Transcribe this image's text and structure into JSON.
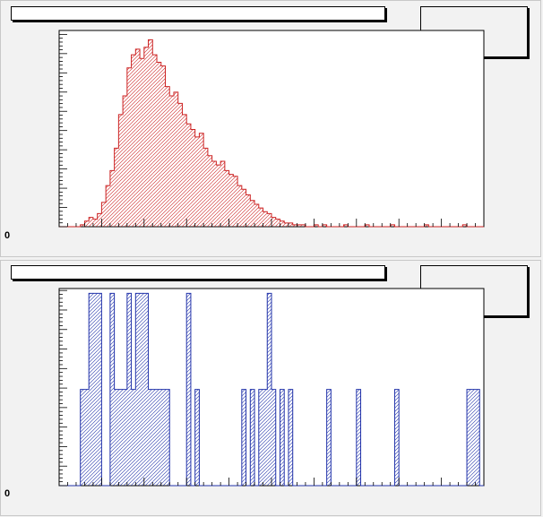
{
  "pads": [
    {
      "id": "top",
      "title": "",
      "stats": "",
      "axis_corner_label": "0"
    },
    {
      "id": "bottom",
      "title": "",
      "stats": "",
      "axis_corner_label": "0"
    }
  ],
  "chart_data": [
    {
      "type": "histogram",
      "title": "",
      "xlabel": "",
      "ylabel": "",
      "line_color": "#cc2222",
      "fill": "hatched",
      "bin_count": 100,
      "values": [
        0,
        0,
        0,
        0,
        0,
        1,
        3,
        5,
        4,
        7,
        13,
        22,
        30,
        42,
        60,
        70,
        85,
        92,
        95,
        90,
        96,
        100,
        92,
        88,
        86,
        75,
        70,
        72,
        66,
        60,
        55,
        52,
        48,
        50,
        42,
        38,
        35,
        33,
        35,
        30,
        28,
        27,
        22,
        20,
        17,
        14,
        12,
        10,
        8,
        7,
        5,
        4,
        3,
        2,
        2,
        1,
        1,
        1,
        0,
        0,
        1,
        0,
        1,
        0,
        0,
        0,
        0,
        1,
        0,
        0,
        0,
        0,
        1,
        0,
        0,
        0,
        0,
        0,
        1,
        0,
        0,
        0,
        0,
        0,
        0,
        0,
        1,
        0,
        0,
        0,
        0,
        0,
        0,
        0,
        0,
        1,
        0,
        0,
        0,
        0
      ],
      "ylim": [
        0,
        105
      ],
      "grid": false
    },
    {
      "type": "histogram",
      "title": "",
      "xlabel": "",
      "ylabel": "",
      "line_color": "#2233aa",
      "fill": "hatched",
      "bin_count": 100,
      "values": [
        0,
        0,
        0,
        0,
        0,
        1,
        1,
        2,
        2,
        2,
        0,
        0,
        2,
        1,
        1,
        1,
        2,
        1,
        2,
        2,
        2,
        1,
        1,
        1,
        1,
        1,
        0,
        0,
        0,
        0,
        2,
        0,
        1,
        0,
        0,
        0,
        0,
        0,
        0,
        0,
        0,
        0,
        0,
        1,
        0,
        1,
        0,
        1,
        1,
        2,
        1,
        0,
        1,
        0,
        1,
        0,
        0,
        0,
        0,
        0,
        0,
        0,
        0,
        1,
        0,
        0,
        0,
        0,
        0,
        0,
        1,
        0,
        0,
        0,
        0,
        0,
        0,
        0,
        0,
        1,
        0,
        0,
        0,
        0,
        0,
        0,
        0,
        0,
        0,
        0,
        0,
        0,
        0,
        0,
        0,
        0,
        1,
        1,
        1,
        0
      ],
      "ylim": [
        0,
        2.05
      ],
      "grid": false
    }
  ]
}
